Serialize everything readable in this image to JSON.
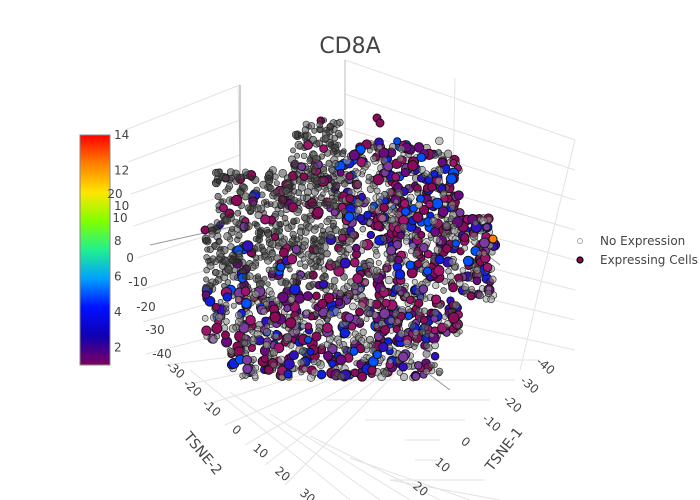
{
  "chart_data": {
    "type": "scatter",
    "subtype": "scatter3d",
    "title": "CD8A",
    "axes": {
      "x": {
        "label": "TSNE-1",
        "ticks": [
          "-40",
          "-30",
          "-20",
          "-10",
          "0",
          "10",
          "20"
        ]
      },
      "y": {
        "label": "TSNE-2",
        "ticks": [
          "-30",
          "-20",
          "-10",
          "0",
          "10",
          "20",
          "30"
        ]
      },
      "z": {
        "label": "",
        "ticks": [
          "20",
          "10",
          "0",
          "-10",
          "-20",
          "-30",
          "-40"
        ]
      }
    },
    "series": [
      {
        "name": "No Expression",
        "color": "#c8c8c8"
      },
      {
        "name": "Expressing Cells",
        "color": "#8b0a5a",
        "colorscale": "rainbow"
      }
    ],
    "colorbar": {
      "range": [
        1,
        14
      ],
      "ticks": [
        "14",
        "12",
        "10",
        "8",
        "6",
        "4",
        "2"
      ],
      "colors": [
        "#ff0000",
        "#ff8000",
        "#ffe600",
        "#80ff00",
        "#20f090",
        "#00a0ff",
        "#0010ff",
        "#1000b0",
        "#800060"
      ]
    },
    "legend_position": "right",
    "grid": true
  }
}
